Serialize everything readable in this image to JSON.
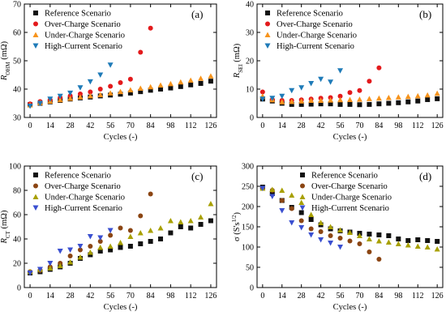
{
  "chart_data": [
    {
      "panel": "a",
      "type": "scatter",
      "tag": "(a)",
      "xlabel": "Cycles (-)",
      "ylabel": "R_OHM (mΩ)",
      "ylabel_parts": {
        "base": "R",
        "sub": "OHM",
        "unit": " (mΩ)"
      },
      "xlim": [
        -4,
        130
      ],
      "ylim": [
        30,
        70
      ],
      "xticks": [
        0,
        14,
        28,
        42,
        56,
        70,
        84,
        98,
        112,
        126
      ],
      "yticks": [
        30,
        40,
        50,
        60,
        70
      ],
      "legend": "top-left",
      "series": [
        {
          "name": "Reference Scenario",
          "marker": "square",
          "color": "#111111",
          "x": [
            0,
            7,
            14,
            21,
            28,
            35,
            42,
            49,
            56,
            63,
            70,
            77,
            84,
            91,
            98,
            105,
            112,
            119,
            126
          ],
          "y": [
            34.5,
            35.0,
            35.5,
            36.0,
            36.5,
            36.9,
            37.2,
            37.6,
            37.9,
            38.2,
            38.6,
            39.1,
            39.6,
            40.0,
            40.4,
            40.9,
            41.5,
            42.0,
            42.8
          ]
        },
        {
          "name": "Over-Charge Scenario",
          "marker": "circle",
          "color": "#e31a1c",
          "x": [
            0,
            7,
            14,
            21,
            28,
            35,
            42,
            49,
            56,
            63,
            70,
            77,
            84
          ],
          "y": [
            34.8,
            35.6,
            36.2,
            37.0,
            37.6,
            38.3,
            39.0,
            40.0,
            41.0,
            42.3,
            43.5,
            53.0,
            61.5
          ]
        },
        {
          "name": "Under-Charge Scenario",
          "marker": "triangle-up",
          "color": "#f7941d",
          "x": [
            0,
            7,
            14,
            21,
            28,
            35,
            42,
            49,
            56,
            63,
            70,
            77,
            84,
            91,
            98,
            105,
            112,
            119,
            126
          ],
          "y": [
            34.4,
            35.2,
            35.7,
            36.2,
            36.7,
            37.2,
            37.6,
            38.0,
            38.6,
            39.1,
            39.7,
            40.3,
            40.8,
            41.4,
            41.9,
            42.5,
            43.1,
            43.8,
            44.6
          ]
        },
        {
          "name": "High-Current Scenario",
          "marker": "triangle-down",
          "color": "#1f7bb8",
          "x": [
            0,
            7,
            14,
            21,
            28,
            35,
            42,
            49,
            56
          ],
          "y": [
            34.0,
            35.0,
            36.5,
            37.5,
            38.6,
            40.5,
            42.6,
            45.0,
            48.5
          ]
        }
      ]
    },
    {
      "panel": "b",
      "type": "scatter",
      "tag": "(b)",
      "xlabel": "Cycles (-)",
      "ylabel": "R_SEI (mΩ)",
      "ylabel_parts": {
        "base": "R",
        "sub": "SEI",
        "unit": " (mΩ)"
      },
      "xlim": [
        -4,
        130
      ],
      "ylim": [
        0,
        40
      ],
      "xticks": [
        0,
        14,
        28,
        42,
        56,
        70,
        84,
        98,
        112,
        126
      ],
      "yticks": [
        0,
        10,
        20,
        30,
        40
      ],
      "legend": "top-left",
      "series": [
        {
          "name": "Reference Scenario",
          "marker": "square",
          "color": "#111111",
          "x": [
            0,
            7,
            14,
            21,
            28,
            35,
            42,
            49,
            56,
            63,
            70,
            77,
            84,
            91,
            98,
            105,
            112,
            119,
            126
          ],
          "y": [
            6.5,
            5.8,
            5.0,
            4.6,
            4.6,
            4.7,
            4.8,
            4.8,
            4.6,
            4.6,
            4.5,
            4.6,
            4.8,
            5.0,
            5.2,
            5.5,
            5.8,
            6.3,
            6.6
          ]
        },
        {
          "name": "Over-Charge Scenario",
          "marker": "circle",
          "color": "#e31a1c",
          "x": [
            0,
            7,
            14,
            21,
            28,
            35,
            42,
            49,
            56,
            63,
            70,
            77,
            84
          ],
          "y": [
            9.0,
            6.2,
            6.0,
            6.0,
            6.2,
            6.5,
            6.8,
            7.0,
            7.5,
            8.8,
            9.5,
            12.8,
            17.5
          ]
        },
        {
          "name": "Under-Charge Scenario",
          "marker": "triangle-up",
          "color": "#f7941d",
          "x": [
            0,
            7,
            14,
            21,
            28,
            35,
            42,
            49,
            56,
            63,
            70,
            77,
            84,
            91,
            98,
            105,
            112,
            119,
            126
          ],
          "y": [
            7.5,
            6.2,
            5.5,
            5.6,
            5.8,
            6.0,
            6.0,
            6.1,
            6.2,
            6.3,
            6.4,
            6.6,
            6.8,
            7.0,
            7.2,
            7.4,
            7.6,
            7.9,
            8.5
          ]
        },
        {
          "name": "High-Current Scenario",
          "marker": "triangle-down",
          "color": "#1f7bb8",
          "x": [
            0,
            7,
            14,
            21,
            28,
            35,
            42,
            49,
            56
          ],
          "y": [
            6.5,
            6.8,
            7.5,
            9.5,
            10.5,
            12.0,
            13.5,
            12.5,
            16.5
          ]
        }
      ]
    },
    {
      "panel": "c",
      "type": "scatter",
      "tag": "(c)",
      "xlabel": "Cycles (-)",
      "ylabel": "R_CT (mΩ)",
      "ylabel_parts": {
        "base": "R",
        "sub": "CT",
        "unit": " (mΩ)"
      },
      "xlim": [
        -4,
        130
      ],
      "ylim": [
        0,
        100
      ],
      "xticks": [
        0,
        14,
        28,
        42,
        56,
        70,
        84,
        98,
        112,
        126
      ],
      "yticks": [
        0,
        20,
        40,
        60,
        80,
        100
      ],
      "legend": "top-left",
      "series": [
        {
          "name": "Reference Scenario",
          "marker": "square",
          "color": "#111111",
          "x": [
            0,
            7,
            14,
            21,
            28,
            35,
            42,
            49,
            56,
            63,
            70,
            77,
            84,
            91,
            98,
            105,
            112,
            119,
            126
          ],
          "y": [
            12,
            13,
            15,
            17,
            20,
            24,
            27,
            30,
            31,
            33,
            34,
            36,
            38,
            40,
            45,
            50,
            49,
            52,
            55
          ]
        },
        {
          "name": "Over-Charge Scenario",
          "marker": "circle",
          "color": "#8b4513",
          "x": [
            0,
            7,
            14,
            21,
            28,
            35,
            42,
            49,
            56,
            63,
            70,
            77,
            84
          ],
          "y": [
            13,
            14,
            17,
            20,
            26,
            31,
            34,
            38,
            43,
            49,
            47,
            59,
            77
          ]
        },
        {
          "name": "Under-Charge Scenario",
          "marker": "triangle-up",
          "color": "#a8a000",
          "x": [
            0,
            7,
            14,
            21,
            28,
            35,
            42,
            49,
            56,
            63,
            70,
            77,
            84,
            91,
            98,
            105,
            112,
            119,
            126
          ],
          "y": [
            13,
            15,
            16,
            18,
            21,
            25,
            29,
            33,
            34,
            37,
            42,
            45,
            47,
            49,
            55,
            54,
            55,
            58,
            69
          ]
        },
        {
          "name": "High-Current Scenario",
          "marker": "triangle-down",
          "color": "#3a4fd0",
          "x": [
            0,
            7,
            14,
            21,
            28,
            35,
            42,
            49,
            56
          ],
          "y": [
            12,
            15,
            20,
            30,
            31,
            34,
            42,
            41,
            47
          ]
        }
      ]
    },
    {
      "panel": "d",
      "type": "scatter",
      "tag": "(d)",
      "xlabel": "Cycles (-)",
      "ylabel": "σ (S's^1/2)",
      "ylabel_parts": {
        "base": "σ (S's",
        "sup": "1/2",
        "unit": ")"
      },
      "xlim": [
        -4,
        130
      ],
      "ylim": [
        0,
        300
      ],
      "xticks": [
        0,
        14,
        28,
        42,
        56,
        70,
        84,
        98,
        112,
        126
      ],
      "yticks": [
        0,
        50,
        100,
        150,
        200,
        250,
        300
      ],
      "legend": "top-right",
      "series": [
        {
          "name": "Reference Scenario",
          "marker": "square",
          "color": "#111111",
          "x": [
            0,
            7,
            14,
            21,
            28,
            35,
            42,
            49,
            56,
            63,
            70,
            77,
            84,
            91,
            98,
            105,
            112,
            119,
            126
          ],
          "y": [
            248,
            232,
            215,
            198,
            185,
            168,
            155,
            145,
            140,
            137,
            134,
            132,
            130,
            128,
            120,
            116,
            118,
            116,
            114
          ]
        },
        {
          "name": "Over-Charge Scenario",
          "marker": "circle",
          "color": "#8b4513",
          "x": [
            0,
            7,
            14,
            21,
            28,
            35,
            42,
            49,
            56,
            63,
            70,
            77,
            84
          ],
          "y": [
            245,
            240,
            215,
            195,
            165,
            145,
            138,
            128,
            122,
            115,
            108,
            88,
            70
          ]
        },
        {
          "name": "Under-Charge Scenario",
          "marker": "triangle-up",
          "color": "#a8a000",
          "x": [
            0,
            7,
            14,
            21,
            28,
            35,
            42,
            49,
            56,
            63,
            70,
            77,
            84,
            91,
            98,
            105,
            112,
            119,
            126
          ],
          "y": [
            245,
            242,
            240,
            228,
            210,
            180,
            160,
            150,
            142,
            136,
            128,
            120,
            115,
            112,
            108,
            105,
            102,
            100,
            95
          ]
        },
        {
          "name": "High-Current Scenario",
          "marker": "triangle-down",
          "color": "#3a4fd0",
          "x": [
            0,
            7,
            14,
            21,
            28,
            35,
            42,
            49,
            56
          ],
          "y": [
            245,
            225,
            190,
            160,
            148,
            130,
            118,
            110,
            100
          ]
        }
      ]
    }
  ]
}
